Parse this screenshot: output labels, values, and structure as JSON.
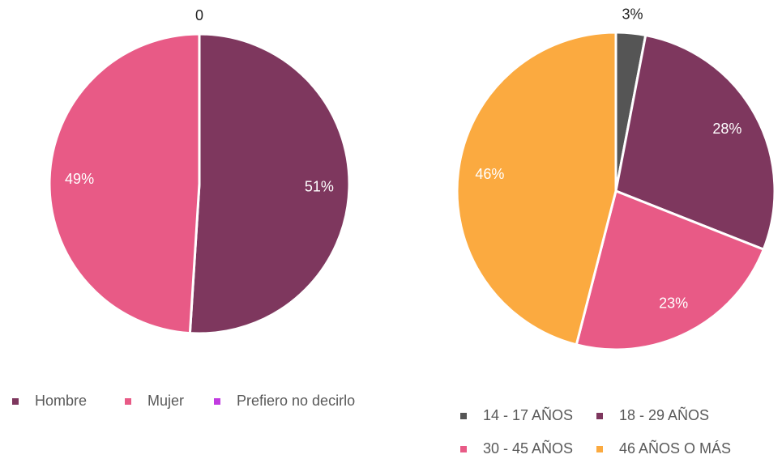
{
  "chart_data": [
    {
      "type": "pie",
      "categories": [
        "Hombre",
        "Mujer",
        "Prefiero no decirlo"
      ],
      "values": [
        51,
        49,
        0
      ],
      "value_labels": [
        "51%",
        "49%",
        "0"
      ],
      "colors": [
        "#7e375e",
        "#e85a86",
        "#c13be0"
      ]
    },
    {
      "type": "pie",
      "categories": [
        "14 - 17 AÑOS",
        "18 - 29 AÑOS",
        "30 - 45 AÑOS",
        "46 AÑOS O MÁS"
      ],
      "values": [
        3,
        28,
        23,
        46
      ],
      "value_labels": [
        "3%",
        "28%",
        "23%",
        "46%"
      ],
      "colors": [
        "#555555",
        "#7e375e",
        "#e85a86",
        "#fbaa40"
      ]
    }
  ]
}
